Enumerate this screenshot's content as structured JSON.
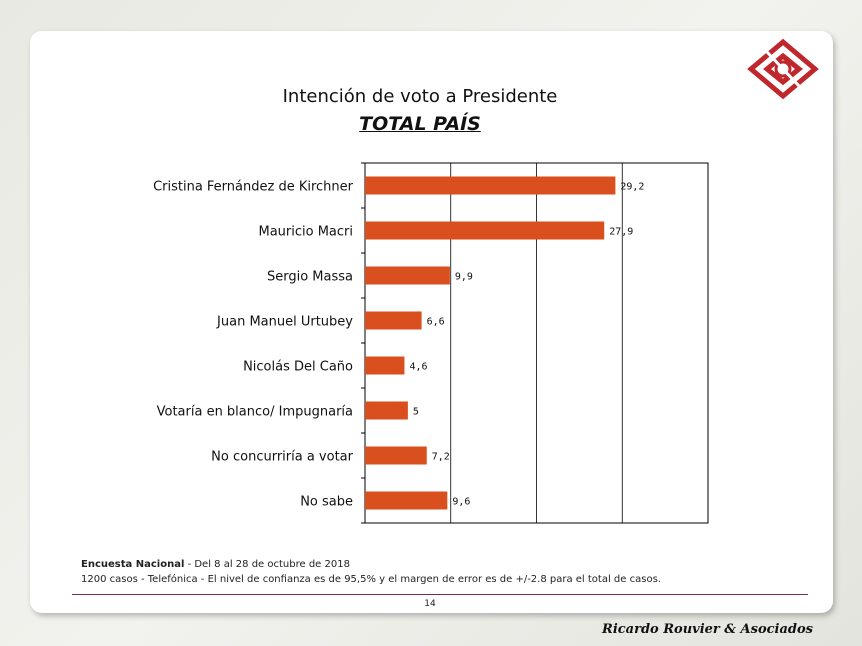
{
  "header": {
    "title": "Intención de voto a Presidente",
    "subtitle": "TOTAL PAÍS"
  },
  "colors": {
    "bar": "#d9501e",
    "accent_rule": "#7b2a57",
    "logo": "#c0272d"
  },
  "chart_data": {
    "type": "bar",
    "orientation": "horizontal",
    "categories": [
      "Cristina Fernández de Kirchner",
      "Mauricio Macri",
      "Sergio Massa",
      "Juan Manuel Urtubey",
      "Nicolás Del Caño",
      "Votaría en blanco/ Impugnaría",
      "No concurriría a votar",
      "No sabe"
    ],
    "values": [
      29.2,
      27.9,
      9.9,
      6.6,
      4.6,
      5,
      7.2,
      9.6
    ],
    "data_labels": [
      "29,2",
      "27,9",
      "9,9",
      "6,6",
      "4,6",
      "5",
      "7,2",
      "9,6"
    ],
    "xlim": [
      0,
      40
    ],
    "grid": true,
    "legend": "none"
  },
  "footer": {
    "survey_name": "Encuesta Nacional",
    "survey_dates": " - Del 8 al 28 de octubre de 2018",
    "details": "1200 casos - Telefónica  - El nivel de confianza es de 95,5% y el margen de error es de +/-2.8 para el total de casos.",
    "page_number": "14",
    "brand": "Ricardo Rouvier & Asociados"
  }
}
